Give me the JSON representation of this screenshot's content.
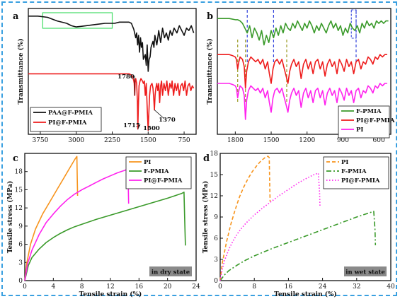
{
  "colors": {
    "black": "#111111",
    "red": "#ee1c1c",
    "green": "#3a9a2a",
    "magenta": "#ff22ee",
    "orange": "#f7941d",
    "frame": "#3aa0e0",
    "badge_bg": "#8a8a8a",
    "badge_text": "#ffee55",
    "highlight": "#44dd66",
    "marker": "#3344dd",
    "olive": "#999922"
  },
  "chart_data": [
    {
      "panel": "a",
      "type": "line",
      "ylabel": "Transmittance (%)",
      "xlabel": "",
      "xticks": [
        3750,
        3000,
        2250,
        1500,
        750
      ],
      "xlim": [
        4000,
        500
      ],
      "x_reversed": true,
      "legend": [
        "PAA@F-PMIA",
        "PI@F-PMIA"
      ],
      "annotations": [
        "1780",
        "1370",
        "1715",
        "1500"
      ],
      "series": [
        {
          "name": "PAA@F-PMIA",
          "color": "black",
          "x": [
            4000,
            3800,
            3600,
            3400,
            3200,
            3100,
            3000,
            2900,
            2800,
            2600,
            2400,
            2200,
            2100,
            2000,
            1900,
            1850,
            1800,
            1760,
            1740,
            1720,
            1700,
            1680,
            1660,
            1640,
            1620,
            1600,
            1560,
            1540,
            1520,
            1500,
            1480,
            1460,
            1440,
            1400,
            1380,
            1360,
            1320,
            1280,
            1240,
            1200,
            1160,
            1120,
            1080,
            1040,
            1000,
            960,
            900,
            850,
            800,
            750,
            700,
            650,
            600,
            550
          ],
          "y": [
            96,
            96,
            95,
            92,
            90,
            88,
            87,
            87.5,
            88,
            89,
            90,
            90,
            91,
            91,
            91,
            90,
            85,
            78,
            82,
            72,
            80,
            66,
            78,
            70,
            74,
            60,
            64,
            55,
            72,
            50,
            60,
            62,
            70,
            75,
            70,
            80,
            72,
            84,
            74,
            86,
            78,
            82,
            76,
            84,
            80,
            86,
            82,
            88,
            84,
            80,
            86,
            84,
            88,
            82
          ]
        },
        {
          "name": "PI@F-PMIA",
          "color": "red",
          "x": [
            4000,
            3800,
            3600,
            3400,
            3200,
            3000,
            2800,
            2600,
            2400,
            2200,
            2100,
            2000,
            1900,
            1850,
            1820,
            1800,
            1790,
            1780,
            1770,
            1760,
            1740,
            1725,
            1715,
            1705,
            1690,
            1670,
            1650,
            1620,
            1600,
            1580,
            1560,
            1540,
            1520,
            1510,
            1500,
            1490,
            1470,
            1450,
            1420,
            1400,
            1385,
            1370,
            1355,
            1340,
            1320,
            1300,
            1280,
            1260,
            1240,
            1220,
            1200,
            1170,
            1140,
            1110,
            1080,
            1050,
            1020,
            1000,
            970,
            940,
            910,
            880,
            850,
            820,
            790,
            760,
            730,
            700,
            670,
            640,
            610,
            580,
            550
          ],
          "y": [
            48,
            48,
            48,
            48,
            48,
            48,
            48,
            48,
            48,
            48,
            48,
            48,
            48,
            47,
            45,
            42,
            40,
            30,
            42,
            44,
            40,
            25,
            2,
            20,
            38,
            42,
            44,
            42,
            40,
            42,
            30,
            40,
            20,
            10,
            1,
            12,
            30,
            38,
            40,
            36,
            28,
            18,
            30,
            36,
            40,
            34,
            40,
            24,
            38,
            42,
            30,
            40,
            34,
            42,
            30,
            40,
            36,
            42,
            30,
            40,
            34,
            40,
            30,
            38,
            40,
            34,
            42,
            30,
            38,
            40,
            34,
            38,
            36
          ]
        }
      ]
    },
    {
      "panel": "b",
      "type": "line",
      "ylabel": "Transmittance (%)",
      "xlabel": "",
      "xticks": [
        1800,
        1500,
        1200,
        900,
        600
      ],
      "xlim": [
        1950,
        500
      ],
      "x_reversed": true,
      "legend": [
        "F-PMIA",
        "PI@F-PMIA",
        "PI"
      ],
      "series": [
        {
          "name": "F-PMIA",
          "color": "green",
          "x": [
            1950,
            1900,
            1850,
            1800,
            1780,
            1760,
            1740,
            1720,
            1700,
            1680,
            1660,
            1640,
            1620,
            1600,
            1580,
            1560,
            1540,
            1520,
            1500,
            1480,
            1460,
            1440,
            1420,
            1400,
            1380,
            1360,
            1340,
            1320,
            1300,
            1280,
            1260,
            1240,
            1220,
            1200,
            1180,
            1160,
            1140,
            1120,
            1100,
            1080,
            1060,
            1040,
            1020,
            1000,
            980,
            960,
            940,
            920,
            900,
            880,
            860,
            840,
            820,
            800,
            780,
            760,
            740,
            720,
            700,
            680,
            660,
            640,
            620,
            600,
            580,
            560,
            540,
            520
          ],
          "y": [
            94,
            94,
            94,
            93,
            93,
            92,
            90,
            86,
            82,
            88,
            78,
            86,
            82,
            76,
            84,
            72,
            80,
            74,
            84,
            78,
            86,
            80,
            88,
            82,
            90,
            86,
            84,
            90,
            86,
            92,
            88,
            84,
            90,
            86,
            92,
            88,
            82,
            88,
            84,
            90,
            86,
            82,
            88,
            92,
            86,
            90,
            84,
            88,
            80,
            86,
            82,
            90,
            86,
            84,
            88,
            82,
            90,
            86,
            92,
            88,
            90,
            86,
            92,
            90,
            92,
            90,
            92,
            92
          ]
        },
        {
          "name": "PI@F-PMIA",
          "color": "red",
          "x": [
            1950,
            1900,
            1850,
            1820,
            1800,
            1790,
            1780,
            1770,
            1760,
            1740,
            1725,
            1715,
            1705,
            1690,
            1670,
            1650,
            1630,
            1610,
            1590,
            1570,
            1550,
            1530,
            1515,
            1500,
            1485,
            1470,
            1450,
            1430,
            1410,
            1390,
            1375,
            1360,
            1345,
            1330,
            1310,
            1290,
            1270,
            1250,
            1230,
            1210,
            1190,
            1170,
            1150,
            1130,
            1110,
            1090,
            1070,
            1050,
            1030,
            1010,
            990,
            970,
            950,
            930,
            910,
            890,
            870,
            850,
            830,
            810,
            790,
            770,
            750,
            730,
            710,
            690,
            670,
            650,
            630,
            610,
            590,
            570,
            550,
            530
          ],
          "y": [
            64,
            64,
            64,
            63,
            62,
            60,
            52,
            58,
            62,
            60,
            54,
            36,
            50,
            58,
            62,
            60,
            58,
            60,
            56,
            60,
            52,
            58,
            48,
            40,
            52,
            58,
            60,
            56,
            60,
            52,
            46,
            40,
            50,
            56,
            60,
            54,
            58,
            44,
            56,
            60,
            52,
            58,
            48,
            58,
            60,
            52,
            58,
            46,
            56,
            60,
            54,
            58,
            48,
            60,
            56,
            50,
            60,
            54,
            58,
            48,
            58,
            60,
            52,
            58,
            56,
            62,
            60,
            56,
            62,
            60,
            64,
            62,
            64,
            64
          ]
        },
        {
          "name": "PI",
          "color": "magenta",
          "x": [
            1950,
            1900,
            1850,
            1820,
            1800,
            1790,
            1780,
            1770,
            1760,
            1740,
            1725,
            1715,
            1705,
            1690,
            1670,
            1650,
            1630,
            1610,
            1590,
            1570,
            1550,
            1530,
            1515,
            1500,
            1485,
            1470,
            1450,
            1430,
            1410,
            1390,
            1375,
            1360,
            1345,
            1330,
            1310,
            1290,
            1270,
            1250,
            1230,
            1210,
            1190,
            1170,
            1150,
            1130,
            1110,
            1090,
            1070,
            1050,
            1030,
            1010,
            990,
            970,
            950,
            930,
            910,
            890,
            870,
            850,
            830,
            810,
            790,
            770,
            750,
            730,
            710,
            690,
            670,
            650,
            630,
            610,
            590,
            570,
            550,
            530
          ],
          "y": [
            40,
            40,
            40,
            39,
            38,
            36,
            28,
            34,
            38,
            36,
            30,
            10,
            26,
            34,
            38,
            36,
            34,
            36,
            32,
            36,
            28,
            34,
            24,
            16,
            28,
            34,
            36,
            32,
            36,
            28,
            22,
            16,
            26,
            32,
            36,
            30,
            34,
            20,
            32,
            36,
            28,
            34,
            24,
            34,
            36,
            28,
            34,
            22,
            32,
            36,
            30,
            34,
            24,
            36,
            32,
            26,
            36,
            30,
            34,
            24,
            34,
            36,
            28,
            34,
            32,
            38,
            36,
            32,
            38,
            36,
            40,
            38,
            40,
            40
          ]
        }
      ]
    },
    {
      "panel": "c",
      "type": "line",
      "ylabel": "Tensile stress (MPa)",
      "xlabel": "Tensile strain (%)",
      "xlim": [
        0,
        24
      ],
      "ylim": [
        0,
        21
      ],
      "xticks": [
        0,
        4,
        8,
        12,
        16,
        20,
        24
      ],
      "yticks": [
        0,
        3,
        6,
        9,
        12,
        15,
        18
      ],
      "legend": [
        "PI",
        "F-PMIA",
        "PI@F-PMIA"
      ],
      "badge": "in dry state",
      "series": [
        {
          "name": "PI",
          "color": "orange",
          "dash": "solid",
          "x": [
            0,
            0.3,
            0.8,
            1.5,
            2.5,
            3.5,
            4.5,
            5.5,
            6.3,
            7.0,
            7.3,
            7.35,
            7.4
          ],
          "y": [
            0,
            3,
            6,
            8.5,
            11,
            13,
            15,
            17,
            18.6,
            20,
            20.5,
            17,
            14
          ]
        },
        {
          "name": "F-PMIA",
          "color": "green",
          "dash": "solid",
          "x": [
            0,
            0.5,
            1,
            2,
            3,
            4,
            5,
            6,
            7,
            8,
            10,
            12,
            14,
            16,
            18,
            20,
            21,
            22,
            22.3,
            22.4,
            22.5
          ],
          "y": [
            0,
            2.5,
            3.8,
            5.2,
            6.3,
            7.1,
            7.8,
            8.4,
            8.9,
            9.3,
            10.1,
            10.8,
            11.5,
            12.2,
            12.9,
            13.6,
            14,
            14.4,
            14.6,
            10,
            5.8
          ]
        },
        {
          "name": "PI@F-PMIA",
          "color": "magenta",
          "dash": "solid",
          "x": [
            0,
            0.4,
            1,
            2,
            3,
            4,
            5,
            6,
            7,
            8,
            9,
            10,
            11,
            12,
            13,
            14,
            14.4,
            14.5,
            14.55
          ],
          "y": [
            0,
            2.8,
            5,
            7.6,
            9.6,
            11,
            12.3,
            13.4,
            14.3,
            15,
            15.6,
            16.2,
            16.8,
            17.3,
            17.8,
            18.2,
            18.4,
            15.5,
            12.7
          ]
        }
      ]
    },
    {
      "panel": "d",
      "type": "line",
      "ylabel": "Tensile stress (MPa)",
      "xlabel": "Tensile strain (%)",
      "xlim": [
        0,
        40
      ],
      "ylim": [
        0,
        18
      ],
      "xticks": [
        0,
        8,
        16,
        24,
        32,
        40
      ],
      "yticks": [
        0,
        3,
        6,
        9,
        12,
        15,
        18
      ],
      "legend": [
        "PI",
        "F-PMIA",
        "PI@F-PMIA"
      ],
      "badge": "in wet state",
      "series": [
        {
          "name": "PI",
          "color": "orange",
          "dash": "dashed",
          "x": [
            0,
            0.5,
            1.5,
            2.5,
            3.5,
            4.5,
            5.5,
            6.5,
            7.5,
            8.5,
            9.5,
            10.5,
            11.2,
            11.5,
            11.6,
            11.7
          ],
          "y": [
            0,
            2.5,
            5.5,
            8,
            10,
            11.8,
            13.2,
            14.4,
            15.4,
            16.2,
            16.9,
            17.4,
            17.6,
            17.4,
            14,
            11.2
          ]
        },
        {
          "name": "F-PMIA",
          "color": "green",
          "dash": "dashdot",
          "x": [
            0,
            1,
            2,
            4,
            6,
            8,
            12,
            16,
            20,
            24,
            28,
            32,
            35,
            36,
            36.3,
            36.4
          ],
          "y": [
            0,
            0.8,
            1.4,
            2.2,
            2.9,
            3.5,
            4.5,
            5.4,
            6.3,
            7.2,
            8.1,
            9,
            9.6,
            9.8,
            7.2,
            5
          ]
        },
        {
          "name": "PI@F-PMIA",
          "color": "magenta",
          "dash": "dotted",
          "x": [
            0,
            0.5,
            1,
            2,
            3,
            4,
            5,
            6,
            8,
            10,
            12,
            14,
            16,
            18,
            20,
            22,
            23,
            23.3,
            23.4
          ],
          "y": [
            0,
            1.6,
            2.8,
            4.4,
            5.6,
            6.6,
            7.4,
            8.1,
            9.3,
            10.3,
            11.2,
            12.1,
            12.9,
            13.7,
            14.4,
            15,
            15.2,
            12.5,
            10.4
          ]
        }
      ]
    }
  ]
}
